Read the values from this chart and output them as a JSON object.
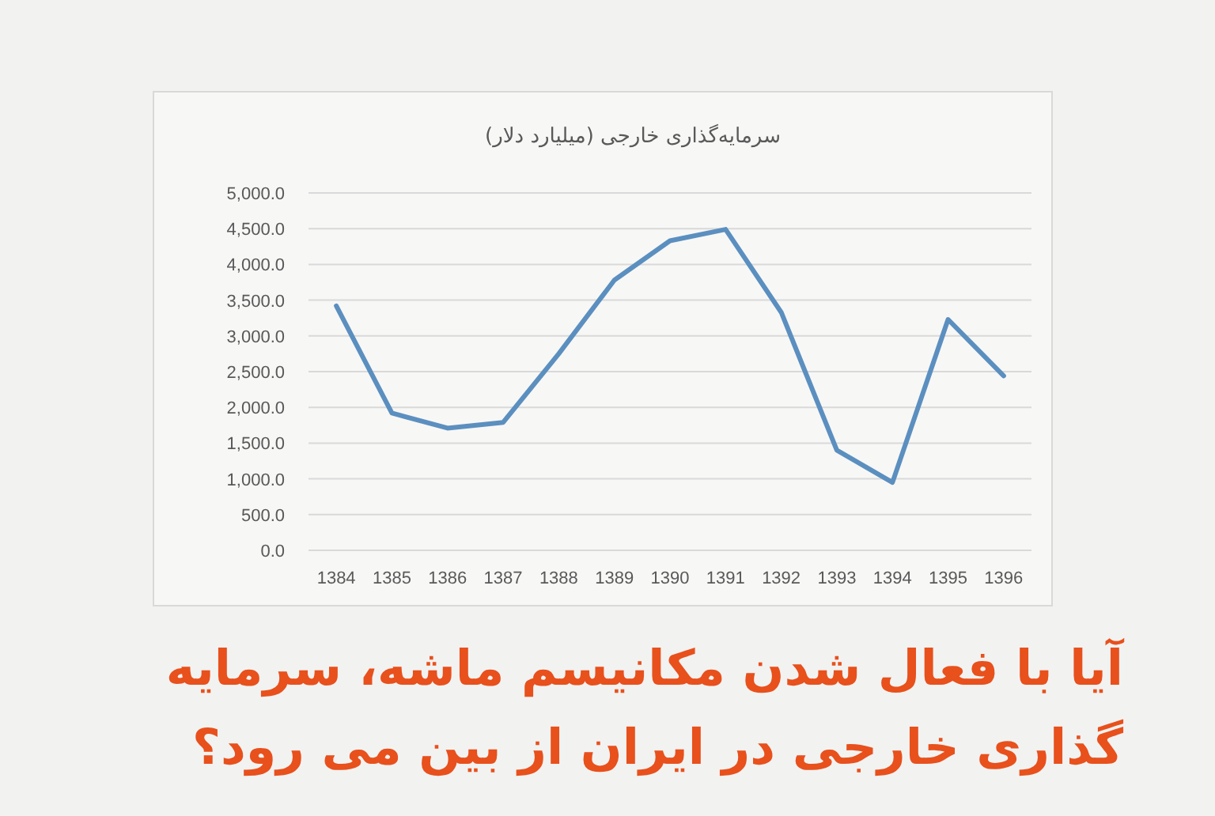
{
  "chart_data": {
    "type": "line",
    "title": "سرمایه‌گذاری خارجی (میلیارد دلار)",
    "annotations": [
      "آیا با فعال شدن مکانیسم ماشه، سرمایه گذاری خارجی در ایران از بین می رود؟"
    ],
    "categories": [
      "1384",
      "1385",
      "1386",
      "1387",
      "1388",
      "1389",
      "1390",
      "1391",
      "1392",
      "1393",
      "1394",
      "1395",
      "1396"
    ],
    "series": [
      {
        "color": "#5b8fbf",
        "values": [
          3420,
          1920,
          1710,
          1790,
          2750,
          3780,
          4330,
          4490,
          3330,
          1400,
          950,
          3230,
          2440
        ]
      }
    ],
    "ylim": [
      0,
      5000
    ],
    "yticks": [
      {
        "value": 0,
        "label": "0.0"
      },
      {
        "value": 500,
        "label": "500.0"
      },
      {
        "value": 1000,
        "label": "1,000.0"
      },
      {
        "value": 1500,
        "label": "1,500.0"
      },
      {
        "value": 2000,
        "label": "2,000.0"
      },
      {
        "value": 2500,
        "label": "2,500.0"
      },
      {
        "value": 3000,
        "label": "3,000.0"
      },
      {
        "value": 3500,
        "label": "3,500.0"
      },
      {
        "value": 4000,
        "label": "4,000.0"
      },
      {
        "value": 4500,
        "label": "4,500.0"
      },
      {
        "value": 5000,
        "label": "5,000.0"
      }
    ],
    "grid": "y",
    "marker": "none",
    "line_style": "solid"
  }
}
